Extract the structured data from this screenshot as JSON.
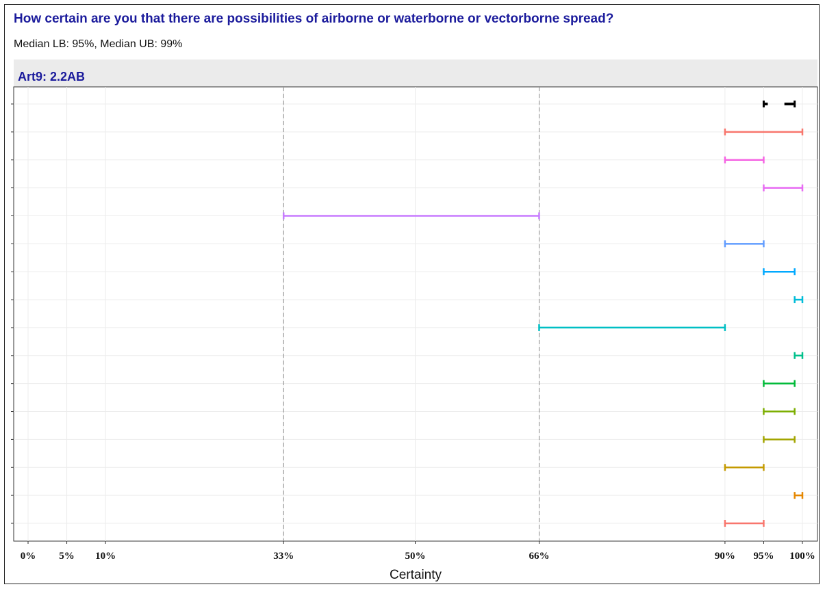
{
  "chart_data": {
    "type": "interval",
    "title": "How certain are you that there are possibilities of airborne or waterborne or vectorborne spread?",
    "subtitle": "Median LB: 95%, Median UB: 99%",
    "facet_label": "Art9: 2.2AB",
    "xlabel": "Certainty",
    "xlim": [
      0,
      100
    ],
    "x_ticks": [
      0,
      5,
      10,
      33,
      50,
      66,
      90,
      95,
      100
    ],
    "x_tick_labels": [
      "0%",
      "5%",
      "10%",
      "33%",
      "50%",
      "66%",
      "90%",
      "95%",
      "100%"
    ],
    "reference_lines": [
      33,
      66
    ],
    "grid": true,
    "median": {
      "lower": 95,
      "upper": 99,
      "color": "#000000"
    },
    "intervals": [
      {
        "lower": 90,
        "upper": 100,
        "color": "#f8766d"
      },
      {
        "lower": 90,
        "upper": 95,
        "color": "#f564e3"
      },
      {
        "lower": 95,
        "upper": 100,
        "color": "#e76bf3"
      },
      {
        "lower": 33,
        "upper": 66,
        "color": "#c77cff"
      },
      {
        "lower": 90,
        "upper": 95,
        "color": "#619cff"
      },
      {
        "lower": 95,
        "upper": 99,
        "color": "#00a9ff"
      },
      {
        "lower": 99,
        "upper": 100,
        "color": "#00bcd8"
      },
      {
        "lower": 66,
        "upper": 90,
        "color": "#00bfc4"
      },
      {
        "lower": 99,
        "upper": 100,
        "color": "#00c08b"
      },
      {
        "lower": 95,
        "upper": 99,
        "color": "#00ba38"
      },
      {
        "lower": 95,
        "upper": 99,
        "color": "#7cae00"
      },
      {
        "lower": 95,
        "upper": 99,
        "color": "#a3a500"
      },
      {
        "lower": 90,
        "upper": 95,
        "color": "#c49a00"
      },
      {
        "lower": 99,
        "upper": 100,
        "color": "#e58700"
      },
      {
        "lower": 90,
        "upper": 95,
        "color": "#f8766d"
      }
    ]
  }
}
